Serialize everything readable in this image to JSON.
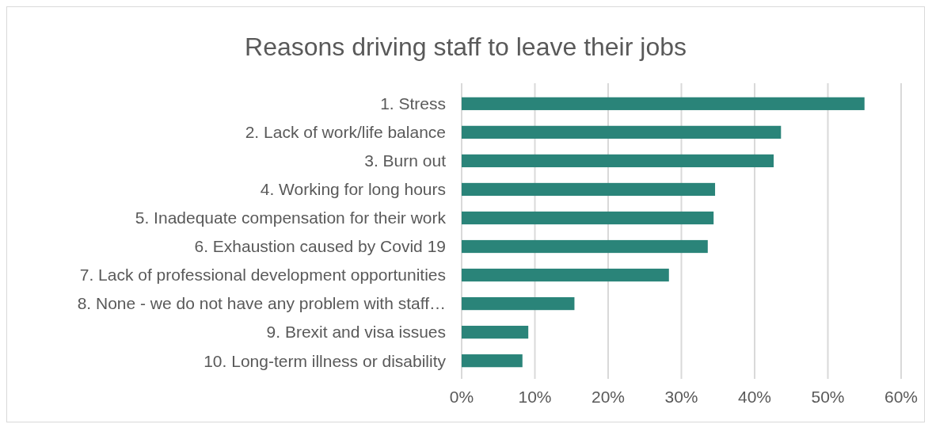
{
  "chart_data": {
    "type": "bar",
    "orientation": "horizontal",
    "title": "Reasons driving staff to leave their jobs",
    "categories": [
      "1. Stress",
      "2. Lack of work/life balance",
      "3. Burn out",
      "4. Working for long hours",
      "5. Inadequate compensation for their work",
      "6. Exhaustion caused by Covid 19",
      "7. Lack of professional development opportunities",
      "8. None - we do not have any problem with staff…",
      "9. Brexit and visa issues",
      "10. Long-term illness or disability"
    ],
    "values": [
      55.0,
      43.6,
      42.6,
      34.6,
      34.4,
      33.6,
      28.3,
      15.4,
      9.1,
      8.3
    ],
    "color": "#2a8479",
    "xlim": [
      0,
      60
    ],
    "xticks": [
      {
        "value": 0,
        "label": "0%"
      },
      {
        "value": 10,
        "label": "10%"
      },
      {
        "value": 20,
        "label": "20%"
      },
      {
        "value": 30,
        "label": "30%"
      },
      {
        "value": 40,
        "label": "40%"
      },
      {
        "value": 50,
        "label": "50%"
      },
      {
        "value": 60,
        "label": "60%"
      }
    ],
    "grid": "x"
  }
}
